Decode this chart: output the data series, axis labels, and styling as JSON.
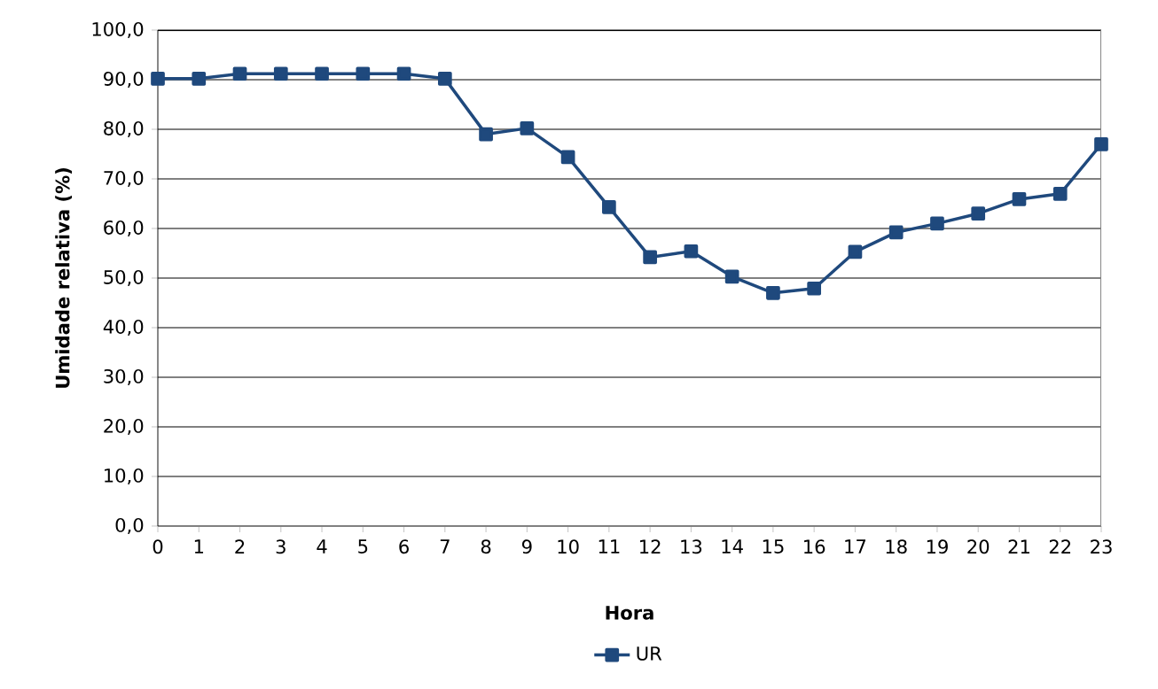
{
  "chart_data": {
    "type": "line",
    "xlabel": "Hora",
    "ylabel": "Umidade relativa (%)",
    "x": [
      0,
      1,
      2,
      3,
      4,
      5,
      6,
      7,
      8,
      9,
      10,
      11,
      12,
      13,
      14,
      15,
      16,
      17,
      18,
      19,
      20,
      21,
      22,
      23
    ],
    "series": [
      {
        "name": "UR",
        "color": "#1f497d",
        "values": [
          90.2,
          90.2,
          91.2,
          91.2,
          91.2,
          91.2,
          91.2,
          90.2,
          79.0,
          80.2,
          74.4,
          64.3,
          54.2,
          55.4,
          50.3,
          47.0,
          47.9,
          55.3,
          59.2,
          61.0,
          63.0,
          65.9,
          67.0,
          77.0
        ]
      }
    ],
    "xlim": [
      0,
      23
    ],
    "xticks": [
      0,
      1,
      2,
      3,
      4,
      5,
      6,
      7,
      8,
      9,
      10,
      11,
      12,
      13,
      14,
      15,
      16,
      17,
      18,
      19,
      20,
      21,
      22,
      23
    ],
    "ylim": [
      0,
      100
    ],
    "yticks": [
      {
        "value": 0,
        "label": "0,0"
      },
      {
        "value": 10,
        "label": "10,0"
      },
      {
        "value": 20,
        "label": "20,0"
      },
      {
        "value": 30,
        "label": "30,0"
      },
      {
        "value": 40,
        "label": "40,0"
      },
      {
        "value": 50,
        "label": "50,0"
      },
      {
        "value": 60,
        "label": "60,0"
      },
      {
        "value": 70,
        "label": "70,0"
      },
      {
        "value": 80,
        "label": "80,0"
      },
      {
        "value": 90,
        "label": "90,0"
      },
      {
        "value": 100,
        "label": "100,0"
      }
    ],
    "grid": "y",
    "legend": "bottom",
    "marker": "square",
    "line_style": "solid"
  }
}
